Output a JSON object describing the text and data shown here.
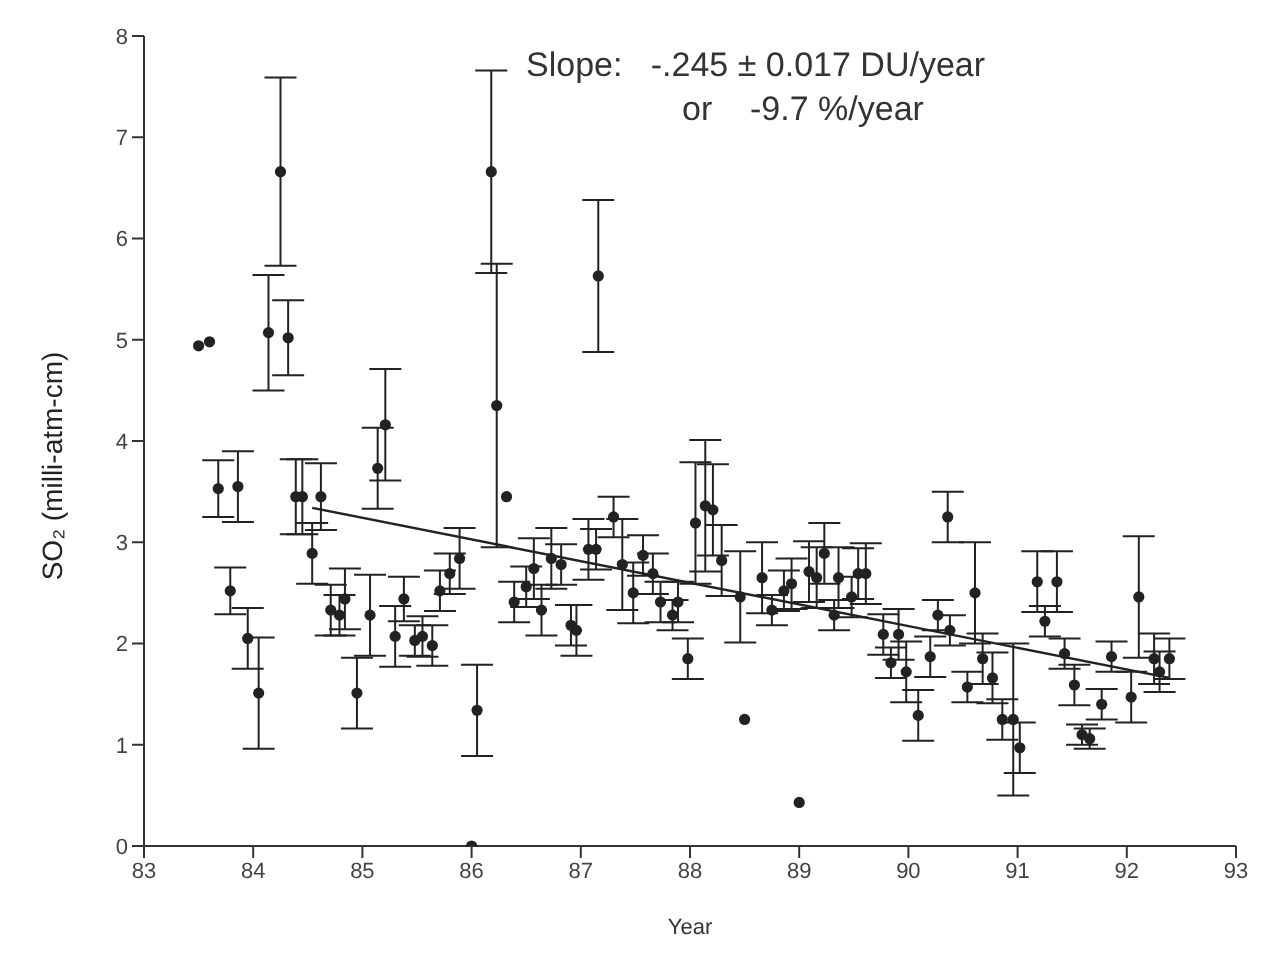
{
  "chart_data": {
    "type": "scatter",
    "xlabel": "Year",
    "ylabel": "SO₂ (milli-atm-cm)",
    "annotations": [
      "Slope:   -.245 ± 0.017 DU/year",
      "or    -9.7 %/year"
    ],
    "xlim": [
      83,
      93
    ],
    "xticks": [
      83,
      84,
      85,
      86,
      87,
      88,
      89,
      90,
      91,
      92,
      93
    ],
    "ylim": [
      0,
      8
    ],
    "yticks": [
      0,
      1,
      2,
      3,
      4,
      5,
      6,
      7,
      8
    ],
    "grid": false,
    "marker": "circle",
    "series": [
      {
        "color": "#222222",
        "x": [
          83.5,
          83.6,
          83.68,
          83.86,
          83.79,
          83.95,
          84.05,
          84.14,
          84.25,
          84.32,
          84.39,
          84.45,
          84.62,
          84.54,
          84.71,
          84.79,
          84.84,
          84.95,
          85.07,
          85.14,
          85.21,
          85.3,
          85.38,
          85.48,
          85.55,
          85.64,
          85.71,
          85.8,
          85.89,
          86.05,
          86.0,
          86.18,
          86.23,
          86.32,
          86.39,
          86.5,
          86.57,
          86.64,
          86.73,
          86.82,
          86.91,
          86.96,
          87.07,
          87.16,
          87.14,
          87.3,
          87.38,
          87.48,
          87.57,
          87.66,
          87.73,
          87.84,
          87.89,
          87.98,
          88.05,
          88.14,
          88.21,
          88.29,
          88.5,
          88.46,
          88.66,
          88.75,
          88.86,
          88.93,
          89.0,
          89.09,
          89.16,
          89.23,
          89.36,
          89.32,
          89.48,
          89.54,
          89.61,
          89.77,
          89.84,
          89.91,
          89.98,
          90.09,
          90.2,
          90.27,
          90.36,
          90.38,
          90.54,
          90.61,
          90.68,
          90.77,
          90.86,
          90.96,
          91.02,
          91.18,
          91.25,
          91.36,
          91.43,
          91.52,
          91.59,
          91.66,
          91.77,
          91.86,
          92.04,
          92.11,
          92.25,
          92.3,
          92.39
        ],
        "values": [
          4.94,
          4.98,
          3.53,
          3.55,
          2.52,
          2.05,
          1.51,
          5.07,
          6.66,
          5.02,
          3.45,
          3.45,
          3.45,
          2.89,
          2.33,
          2.28,
          2.44,
          1.51,
          2.28,
          3.73,
          4.16,
          2.07,
          2.44,
          2.03,
          2.07,
          1.98,
          2.52,
          2.69,
          2.84,
          1.34,
          0.0,
          6.66,
          4.35,
          3.45,
          2.41,
          2.56,
          2.74,
          2.33,
          2.84,
          2.78,
          2.18,
          2.13,
          2.93,
          5.63,
          2.93,
          3.25,
          2.78,
          2.5,
          2.87,
          2.69,
          2.41,
          2.28,
          2.41,
          1.85,
          3.19,
          3.36,
          3.32,
          2.82,
          1.25,
          2.46,
          2.65,
          2.33,
          2.52,
          2.59,
          0.43,
          2.71,
          2.65,
          2.89,
          2.65,
          2.28,
          2.46,
          2.69,
          2.69,
          2.09,
          1.81,
          2.09,
          1.72,
          1.29,
          1.87,
          2.28,
          3.25,
          2.13,
          1.57,
          2.5,
          1.85,
          1.66,
          1.25,
          1.25,
          0.97,
          2.61,
          2.22,
          2.61,
          1.9,
          1.59,
          1.1,
          1.06,
          1.4,
          1.87,
          1.47,
          2.46,
          1.85,
          1.72,
          1.85
        ],
        "errors": [
          null,
          null,
          0.28,
          0.35,
          0.23,
          0.3,
          0.55,
          0.57,
          0.93,
          0.37,
          0.37,
          0.37,
          0.33,
          0.3,
          0.25,
          0.2,
          0.3,
          0.35,
          0.4,
          0.4,
          0.55,
          0.3,
          0.22,
          0.15,
          0.2,
          0.2,
          0.2,
          0.2,
          0.3,
          0.45,
          null,
          1.0,
          1.4,
          null,
          0.2,
          0.2,
          0.3,
          0.25,
          0.3,
          0.2,
          0.2,
          0.25,
          0.3,
          0.75,
          0.2,
          0.2,
          0.45,
          0.3,
          0.2,
          0.2,
          0.2,
          0.15,
          0.2,
          0.2,
          0.6,
          0.65,
          0.45,
          0.35,
          null,
          0.45,
          0.35,
          0.15,
          0.2,
          0.25,
          null,
          0.3,
          0.3,
          0.3,
          0.3,
          0.15,
          0.2,
          0.25,
          0.3,
          0.2,
          0.15,
          0.25,
          0.3,
          0.25,
          0.2,
          0.15,
          0.25,
          0.15,
          0.15,
          0.5,
          0.25,
          0.25,
          0.2,
          0.75,
          0.25,
          0.3,
          0.15,
          0.3,
          0.15,
          0.2,
          0.1,
          0.1,
          0.15,
          0.15,
          0.25,
          0.6,
          0.25,
          0.2,
          0.2
        ]
      },
      {
        "type": "line",
        "color": "#222222",
        "marker": "none",
        "x": [
          84.54,
          92.39
        ],
        "values": [
          3.34,
          1.66
        ]
      }
    ]
  }
}
